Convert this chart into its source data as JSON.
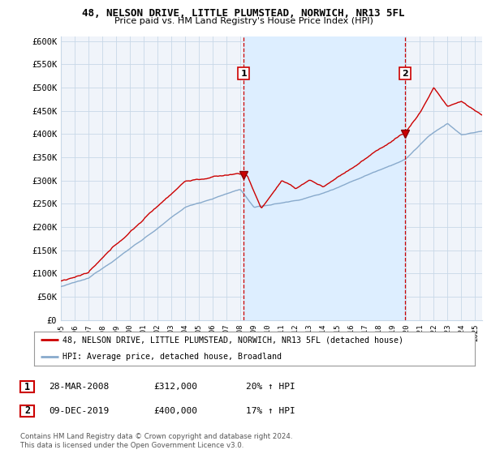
{
  "title_line1": "48, NELSON DRIVE, LITTLE PLUMSTEAD, NORWICH, NR13 5FL",
  "title_line2": "Price paid vs. HM Land Registry's House Price Index (HPI)",
  "ylabel_ticks": [
    "£0",
    "£50K",
    "£100K",
    "£150K",
    "£200K",
    "£250K",
    "£300K",
    "£350K",
    "£400K",
    "£450K",
    "£500K",
    "£550K",
    "£600K"
  ],
  "ytick_values": [
    0,
    50000,
    100000,
    150000,
    200000,
    250000,
    300000,
    350000,
    400000,
    450000,
    500000,
    550000,
    600000
  ],
  "ylim": [
    0,
    610000
  ],
  "xlim_start": 1995.0,
  "xlim_end": 2025.5,
  "sale1_x": 2008.23,
  "sale1_y": 312000,
  "sale2_x": 2019.92,
  "sale2_y": 400000,
  "sale1_date": "28-MAR-2008",
  "sale1_price": "£312,000",
  "sale1_hpi": "20% ↑ HPI",
  "sale2_date": "09-DEC-2019",
  "sale2_price": "£400,000",
  "sale2_hpi": "17% ↑ HPI",
  "legend_line1": "48, NELSON DRIVE, LITTLE PLUMSTEAD, NORWICH, NR13 5FL (detached house)",
  "legend_line2": "HPI: Average price, detached house, Broadland",
  "footer_line1": "Contains HM Land Registry data © Crown copyright and database right 2024.",
  "footer_line2": "This data is licensed under the Open Government Licence v3.0.",
  "red_color": "#cc0000",
  "blue_color": "#88aacc",
  "shade_color": "#ddeeff",
  "vline_color": "#cc0000",
  "bg_color": "#ffffff",
  "plot_bg": "#f0f4fa",
  "grid_color": "#c8d8e8"
}
